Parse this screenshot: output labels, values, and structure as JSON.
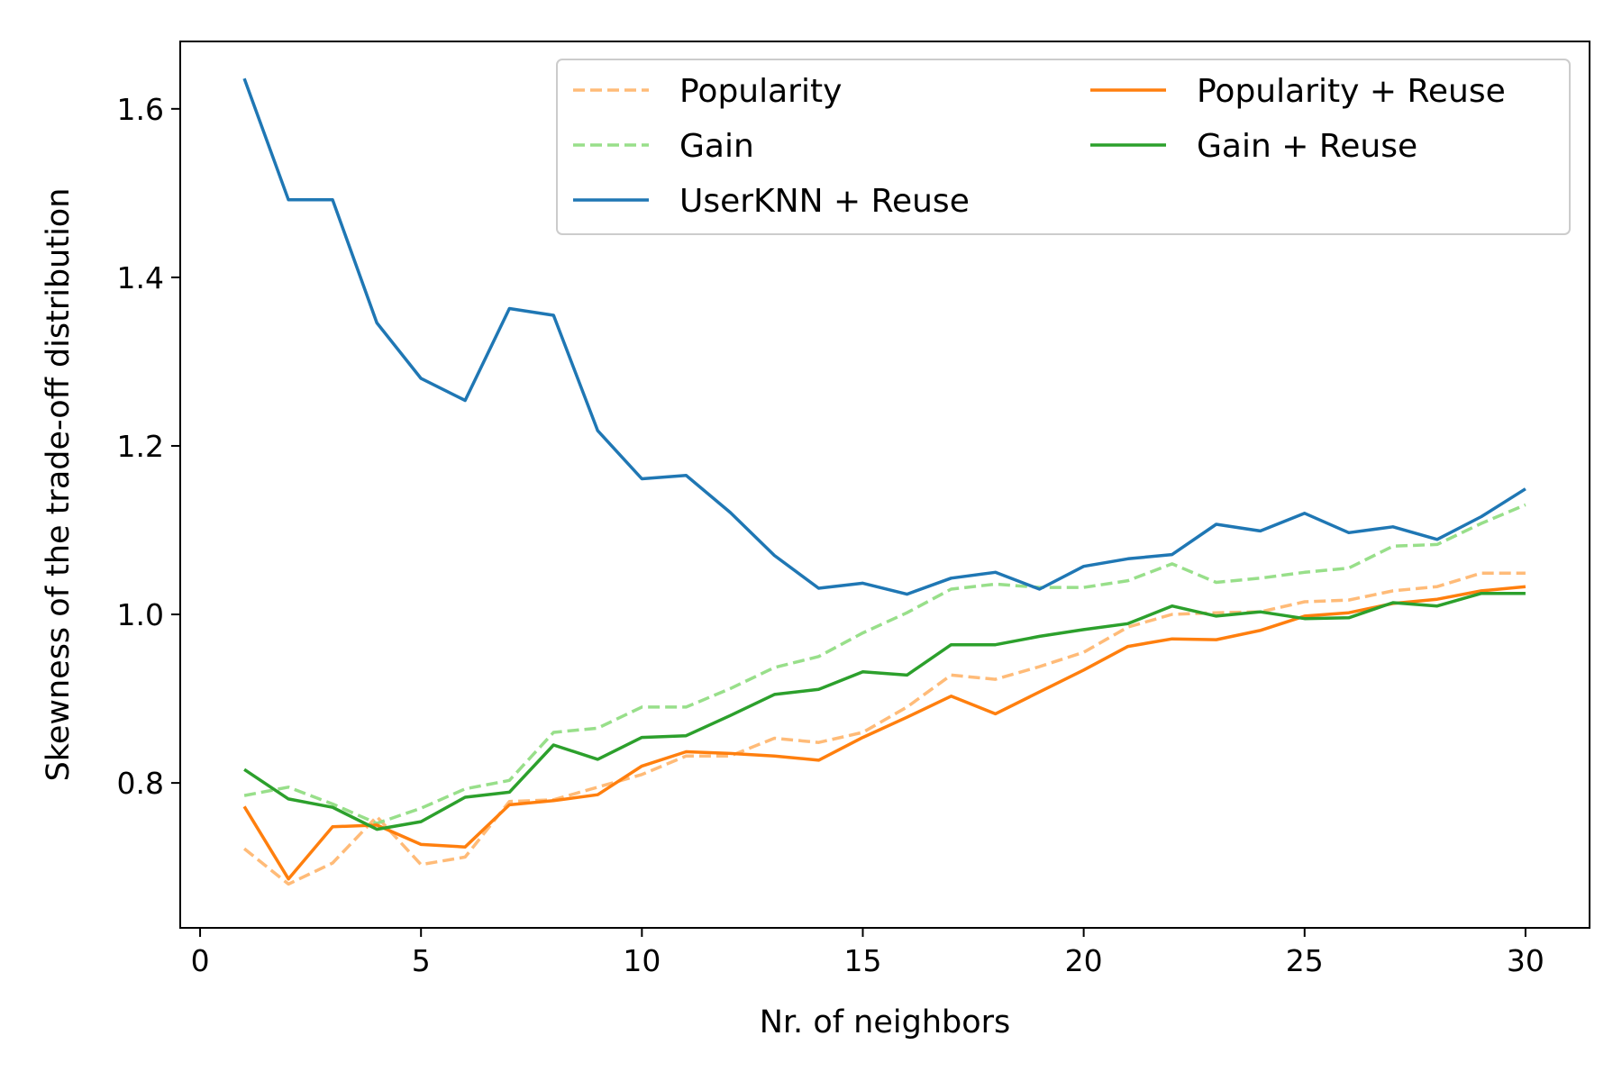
{
  "chart_data": {
    "type": "line",
    "xlabel": "Nr. of neighbors",
    "ylabel": "Skewness of the trade-off distribution",
    "xlim": [
      -0.45,
      31.45
    ],
    "ylim": [
      0.628,
      1.68
    ],
    "xticks": [
      0,
      5,
      10,
      15,
      20,
      25,
      30
    ],
    "xtick_labels": [
      "0",
      "5",
      "10",
      "15",
      "20",
      "25",
      "30"
    ],
    "yticks": [
      0.8,
      1.0,
      1.2,
      1.4,
      1.6
    ],
    "ytick_labels": [
      "0.8",
      "1.0",
      "1.2",
      "1.4",
      "1.6"
    ],
    "grid": false,
    "legend_position": "top-right",
    "legend_columns": 2,
    "x": [
      1,
      2,
      3,
      4,
      5,
      6,
      7,
      8,
      9,
      10,
      11,
      12,
      13,
      14,
      15,
      16,
      17,
      18,
      19,
      20,
      21,
      22,
      23,
      24,
      25,
      26,
      27,
      28,
      29,
      30
    ],
    "series": [
      {
        "name": "Popularity",
        "color": "#ffbb78",
        "dashed": true,
        "values": [
          0.722,
          0.68,
          0.705,
          0.76,
          0.703,
          0.712,
          0.778,
          0.78,
          0.795,
          0.81,
          0.832,
          0.832,
          0.853,
          0.848,
          0.86,
          0.89,
          0.928,
          0.923,
          0.938,
          0.955,
          0.985,
          1.0,
          1.002,
          1.003,
          1.015,
          1.017,
          1.028,
          1.033,
          1.049,
          1.049
        ]
      },
      {
        "name": "Gain",
        "color": "#98df8a",
        "dashed": true,
        "values": [
          0.785,
          0.795,
          0.775,
          0.752,
          0.77,
          0.793,
          0.803,
          0.86,
          0.865,
          0.89,
          0.89,
          0.912,
          0.937,
          0.95,
          0.978,
          1.002,
          1.03,
          1.036,
          1.032,
          1.032,
          1.04,
          1.06,
          1.038,
          1.043,
          1.05,
          1.055,
          1.081,
          1.083,
          1.108,
          1.13
        ]
      },
      {
        "name": "UserKNN + Reuse",
        "color": "#1f77b4",
        "dashed": false,
        "values": [
          1.636,
          1.492,
          1.492,
          1.346,
          1.28,
          1.254,
          1.363,
          1.355,
          1.218,
          1.161,
          1.165,
          1.121,
          1.07,
          1.031,
          1.037,
          1.024,
          1.043,
          1.05,
          1.03,
          1.057,
          1.066,
          1.071,
          1.107,
          1.099,
          1.12,
          1.097,
          1.104,
          1.089,
          1.116,
          1.149
        ]
      },
      {
        "name": "Popularity + Reuse",
        "color": "#ff7f0e",
        "dashed": false,
        "values": [
          0.772,
          0.686,
          0.748,
          0.75,
          0.727,
          0.724,
          0.774,
          0.779,
          0.786,
          0.82,
          0.837,
          0.835,
          0.832,
          0.827,
          0.854,
          0.878,
          0.903,
          0.882,
          0.908,
          0.934,
          0.962,
          0.971,
          0.97,
          0.981,
          0.998,
          1.002,
          1.013,
          1.018,
          1.028,
          1.033
        ]
      },
      {
        "name": "Gain + Reuse",
        "color": "#2ca02c",
        "dashed": false,
        "values": [
          0.816,
          0.781,
          0.771,
          0.745,
          0.754,
          0.783,
          0.789,
          0.845,
          0.828,
          0.854,
          0.856,
          0.88,
          0.905,
          0.911,
          0.932,
          0.928,
          0.964,
          0.964,
          0.974,
          0.982,
          0.989,
          1.01,
          0.998,
          1.003,
          0.995,
          0.996,
          1.014,
          1.01,
          1.025,
          1.025
        ]
      }
    ]
  }
}
